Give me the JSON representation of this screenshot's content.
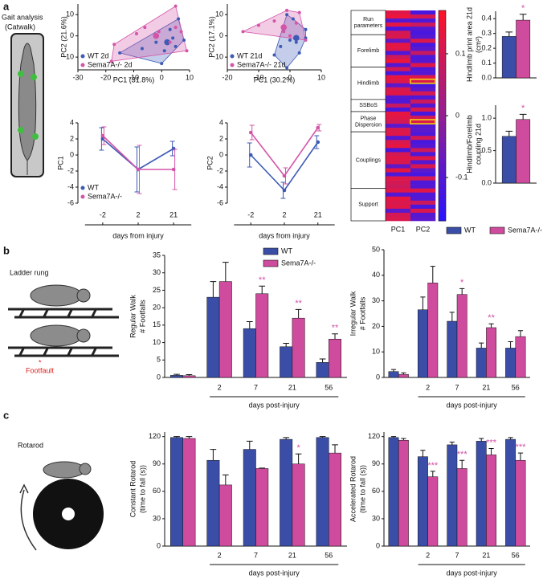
{
  "panels": [
    {
      "label": "a",
      "caption": [
        "Gait analysis",
        "(Catwalk)"
      ]
    },
    {
      "label": "b",
      "caption": [
        "Ladder rung"
      ],
      "marker": "*",
      "note": "Footfault"
    },
    {
      "label": "c",
      "caption": [
        "Rotarod"
      ]
    }
  ],
  "chart_data": [
    {
      "type": "scatter",
      "xlabel": "PC1 (31.8%)",
      "ylabel": [
        "PC2 (21.6%)"
      ],
      "xlim": [
        -30,
        10
      ],
      "xticks": [
        -30,
        -20,
        -10,
        0,
        10
      ],
      "ylim": [
        -16,
        15
      ],
      "yticks": [
        -10,
        0,
        10
      ],
      "hull": true,
      "legend": "lower left",
      "series": [
        {
          "name": "WT 2d",
          "color": "#3d5ab5",
          "x": [
            -15,
            -7,
            -2,
            3,
            4,
            6,
            8,
            0,
            5,
            1
          ],
          "y": [
            -8,
            -6,
            -3,
            3,
            -1,
            8,
            -2,
            -13,
            -5,
            -7
          ],
          "centroid": {
            "x": 2,
            "y": -3
          }
        },
        {
          "name": "Sema7A-/- 2d",
          "color": "#d455a8",
          "x": [
            -17,
            -18,
            -9,
            5,
            5,
            9,
            -1,
            7,
            -6,
            3
          ],
          "y": [
            -4,
            -12,
            1,
            14,
            4,
            -7,
            2,
            2,
            4,
            -3
          ],
          "centroid": {
            "x": -2,
            "y": 0
          }
        }
      ]
    },
    {
      "type": "scatter",
      "xlabel": "PC1 (30.2%)",
      "ylabel": [
        "PC2 (17.1%)"
      ],
      "xlim": [
        -20,
        10
      ],
      "xticks": [
        -20,
        -10,
        0,
        10
      ],
      "ylim": [
        -16,
        15
      ],
      "yticks": [
        -10,
        0,
        10
      ],
      "hull": true,
      "legend": "lower left",
      "series": [
        {
          "name": "WT 21d",
          "color": "#3d5ab5",
          "x": [
            -2,
            0,
            2,
            3,
            -3,
            -5,
            -1,
            5,
            1,
            5,
            -1
          ],
          "y": [
            3,
            -2,
            -3,
            -8,
            -5,
            -9,
            -15,
            -1,
            8,
            3,
            10
          ],
          "centroid": {
            "x": 2,
            "y": -1
          }
        },
        {
          "name": "Sema7A-/- 21d",
          "color": "#d455a8",
          "x": [
            -15,
            -5,
            -1,
            3,
            -2,
            0,
            5,
            -10,
            2
          ],
          "y": [
            2,
            7,
            12,
            11,
            2,
            0,
            -2,
            5,
            6
          ],
          "centroid": {
            "x": -2,
            "y": 4
          }
        }
      ]
    },
    {
      "type": "line",
      "categories": [
        "-2",
        "2",
        "21"
      ],
      "xlabel": "days from injury",
      "ylabel": [
        "PC1"
      ],
      "ylim": [
        -6,
        4
      ],
      "yticks": [
        -6,
        -4,
        -2,
        0,
        2,
        4
      ],
      "legend": "lower left",
      "series": [
        {
          "name": "WT",
          "color": "#3d5ab5",
          "values": [
            2.0,
            -1.8,
            0.8
          ],
          "errors": [
            1.4,
            2.8,
            0.9
          ]
        },
        {
          "name": "Sema7A-/-",
          "color": "#d455a8",
          "values": [
            2.4,
            -1.8,
            -1.8
          ],
          "errors": [
            1.1,
            3.0,
            2.5
          ]
        }
      ]
    },
    {
      "type": "line",
      "categories": [
        "-2",
        "2",
        "21"
      ],
      "xlabel": "days from injury",
      "ylabel": [
        "PC2"
      ],
      "ylim": [
        -6,
        4
      ],
      "yticks": [
        -6,
        -4,
        -2,
        0,
        2,
        4
      ],
      "series": [
        {
          "name": "WT",
          "color": "#3d5ab5",
          "values": [
            0,
            -4.4,
            1.6
          ],
          "errors": [
            1.5,
            1.0,
            0.8
          ]
        },
        {
          "name": "Sema7A-/-",
          "color": "#d455a8",
          "values": [
            2.8,
            -2.6,
            3.4
          ],
          "errors": [
            0.9,
            1.0,
            0.4
          ]
        }
      ]
    },
    {
      "type": "heatmap",
      "clim": [
        -0.17,
        0.17
      ],
      "cticks": [
        -0.1,
        0,
        0.1
      ],
      "highlight_rows": [
        17,
        27
      ],
      "highlight_color": "#f2d40c",
      "groups": [
        {
          "label": [
            "Run",
            "parameters"
          ],
          "rows": 6
        },
        {
          "label": [
            "Forelimb"
          ],
          "rows": 8
        },
        {
          "label": [
            "Hindlimb"
          ],
          "rows": 8
        },
        {
          "label": [
            "SSBoS"
          ],
          "rows": 3
        },
        {
          "label": [
            "Phase",
            "Dispersion"
          ],
          "rows": 5
        },
        {
          "label": [
            "Couplings"
          ],
          "rows": 14
        },
        {
          "label": [
            "Support"
          ],
          "rows": 8
        }
      ],
      "series": [
        {
          "name": "PC1",
          "values": [
            0.12,
            0.14,
            -0.1,
            0.13,
            -0.12,
            0.1,
            0.11,
            -0.08,
            0.13,
            0.12,
            -0.11,
            0.09,
            0.14,
            -0.1,
            0.1,
            -0.12,
            0.13,
            0.12,
            -0.09,
            0.11,
            0.12,
            -0.1,
            -0.11,
            0.08,
            -0.12,
            0.13,
            0.12,
            0.1,
            -0.09,
            0.11,
            0.12,
            -0.1,
            0.11,
            0.13,
            -0.12,
            0.1,
            0.12,
            0.11,
            -0.08,
            0.13,
            -0.11,
            0.12,
            0.1,
            0.09,
            0.12,
            -0.1,
            0.13,
            0.11,
            0.12,
            -0.09,
            0.1,
            0.11
          ]
        },
        {
          "name": "PC2",
          "values": [
            -0.12,
            0.1,
            -0.11,
            0.09,
            -0.1,
            -0.12,
            -0.1,
            0.11,
            -0.12,
            -0.09,
            0.08,
            -0.11,
            -0.1,
            0.12,
            -0.11,
            -0.1,
            0.12,
            0.11,
            -0.12,
            -0.09,
            0.1,
            -0.11,
            0.09,
            -0.1,
            0.11,
            -0.12,
            0.1,
            0.11,
            -0.1,
            -0.09,
            -0.11,
            0.1,
            -0.12,
            -0.1,
            0.09,
            -0.11,
            0.12,
            -0.1,
            0.11,
            -0.09,
            -0.12,
            0.1,
            -0.11,
            -0.1,
            0.12,
            -0.11,
            -0.1,
            0.09,
            -0.12,
            0.11,
            -0.1,
            -0.09
          ]
        }
      ]
    },
    {
      "type": "bar",
      "categories": [
        null
      ],
      "ylabel": [
        "Hindlimb print area 21d",
        "(cm²)"
      ],
      "ylim": [
        0,
        0.45
      ],
      "yticks": [
        {
          "value": 0,
          "label": "0.0"
        },
        0.1,
        0.2,
        0.3,
        0.4
      ],
      "star_color": "#d14fa6",
      "series": [
        {
          "name": "WT",
          "color": "#3a4ea8",
          "values": [
            0.28
          ],
          "errors": [
            0.03
          ]
        },
        {
          "name": "Sema7A-/-",
          "color": "#cf4b9d",
          "values": [
            0.39
          ],
          "errors": [
            0.04
          ],
          "stars": [
            "*"
          ]
        }
      ]
    },
    {
      "type": "bar",
      "categories": [
        null
      ],
      "ylabel": [
        "Hindlimb/Forelimb",
        "coupling 21d"
      ],
      "ylim": [
        0,
        1.2
      ],
      "yticks": [
        {
          "value": 0,
          "label": "0.0"
        },
        0.5,
        {
          "value": 1,
          "label": "1.0"
        }
      ],
      "legend": "bottom",
      "star_color": "#d14fa6",
      "series": [
        {
          "name": "WT",
          "color": "#3a4ea8",
          "values": [
            0.72
          ],
          "errors": [
            0.08
          ]
        },
        {
          "name": "Sema7A-/-",
          "color": "#cf4b9d",
          "values": [
            0.98
          ],
          "errors": [
            0.08
          ],
          "stars": [
            "*"
          ]
        }
      ]
    },
    {
      "type": "bar",
      "categories": [
        null,
        "2",
        "7",
        "21",
        "56"
      ],
      "xlabel": "days post-injury",
      "ylabel": [
        "Regular Walk",
        "# Footfalls"
      ],
      "ylim": [
        0,
        35
      ],
      "yticks": [
        0,
        5,
        10,
        15,
        20,
        25,
        30,
        35
      ],
      "legend": "upper center",
      "star_color": "#d14fa6",
      "series": [
        {
          "name": "WT",
          "color": "#3a4ea8",
          "values": [
            0.6,
            23,
            14,
            8.8,
            4.3
          ],
          "errors": [
            0.3,
            4.5,
            2,
            1,
            1
          ]
        },
        {
          "name": "Sema7A-/-",
          "color": "#cf4b9d",
          "values": [
            0.5,
            27.5,
            24,
            17,
            11
          ],
          "errors": [
            0.3,
            5.5,
            2.2,
            2.5,
            1.5
          ],
          "stars": [
            null,
            null,
            "**",
            "**",
            "**"
          ]
        }
      ]
    },
    {
      "type": "bar",
      "categories": [
        null,
        "2",
        "7",
        "21",
        "56"
      ],
      "xlabel": "days post-injury",
      "ylabel": [
        "Irregular Walk",
        "# Footfalls"
      ],
      "ylim": [
        0,
        50
      ],
      "yticks": [
        0,
        10,
        20,
        30,
        40,
        50
      ],
      "star_color": "#d14fa6",
      "series": [
        {
          "name": "WT",
          "color": "#3a4ea8",
          "values": [
            2.3,
            26.5,
            22,
            11.5,
            11.5
          ],
          "errors": [
            0.8,
            5,
            3.5,
            2,
            2.5
          ]
        },
        {
          "name": "Sema7A-/-",
          "color": "#cf4b9d",
          "values": [
            1.2,
            37,
            32.5,
            19.5,
            16
          ],
          "errors": [
            0.6,
            6.5,
            2.3,
            1.5,
            2.3
          ],
          "stars": [
            null,
            null,
            "*",
            "**",
            null
          ]
        }
      ]
    },
    {
      "type": "bar",
      "categories": [
        null,
        "2",
        "7",
        "21",
        "56"
      ],
      "xlabel": "days post-injury",
      "ylabel": [
        "Constant Rotarod",
        "(time to fall (s))"
      ],
      "ylim": [
        0,
        125
      ],
      "yticks": [
        0,
        30,
        60,
        90,
        120
      ],
      "star_color": "#d14fa6",
      "series": [
        {
          "name": "WT",
          "color": "#3a4ea8",
          "values": [
            119,
            94,
            106,
            117,
            119
          ],
          "errors": [
            1,
            12,
            9,
            2,
            1
          ]
        },
        {
          "name": "Sema7A-/-",
          "color": "#cf4b9d",
          "values": [
            118,
            67,
            85,
            90,
            102
          ],
          "errors": [
            2,
            11,
            0.5,
            11,
            9
          ],
          "stars": [
            null,
            null,
            null,
            "*",
            null
          ]
        }
      ]
    },
    {
      "type": "bar",
      "categories": [
        null,
        "2",
        "7",
        "21",
        "56"
      ],
      "xlabel": "days post-injury",
      "ylabel": [
        "Accelerated Rotarod",
        "(time to fall (s))"
      ],
      "ylim": [
        0,
        125
      ],
      "yticks": [
        0,
        30,
        60,
        90,
        120
      ],
      "star_color": "#d14fa6",
      "series": [
        {
          "name": "WT",
          "color": "#3a4ea8",
          "values": [
            119,
            98,
            111,
            115,
            117
          ],
          "errors": [
            1,
            7,
            3,
            3,
            2
          ]
        },
        {
          "name": "Sema7A-/-",
          "color": "#cf4b9d",
          "values": [
            116,
            76,
            85,
            100,
            94
          ],
          "errors": [
            2,
            6,
            9,
            7,
            8
          ],
          "stars": [
            null,
            "***",
            "***",
            "***",
            "***"
          ]
        }
      ]
    }
  ]
}
